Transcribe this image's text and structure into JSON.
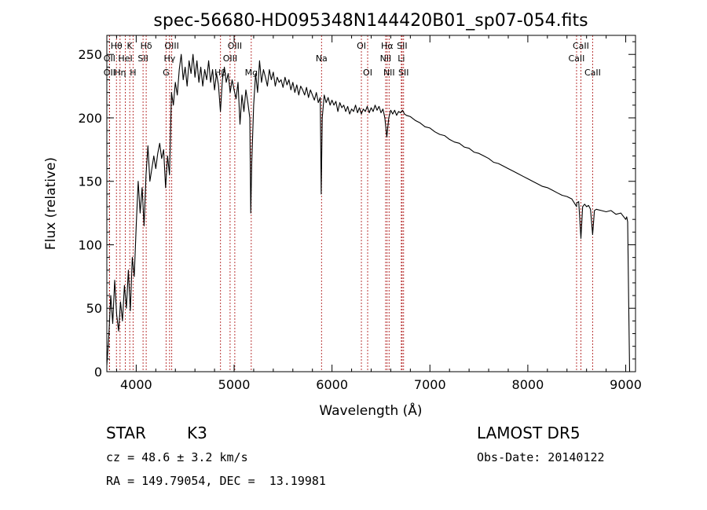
{
  "chart_data": {
    "type": "line",
    "title": "spec-56680-HD095348N144420B01_sp07-054.fits",
    "xlabel": "Wavelength (Å)",
    "ylabel": "Flux (relative)",
    "xlim": [
      3700,
      9100
    ],
    "ylim": [
      0,
      265
    ],
    "xticks": [
      4000,
      5000,
      6000,
      7000,
      8000,
      9000
    ],
    "yticks": [
      0,
      50,
      100,
      150,
      200,
      250
    ],
    "grid": false,
    "legend": "none",
    "line_color": "#000000",
    "marker_color": "#b22222",
    "series": [
      {
        "points": [
          [
            3700,
            5
          ],
          [
            3720,
            28
          ],
          [
            3740,
            60
          ],
          [
            3760,
            38
          ],
          [
            3780,
            72
          ],
          [
            3800,
            45
          ],
          [
            3820,
            32
          ],
          [
            3840,
            55
          ],
          [
            3860,
            40
          ],
          [
            3880,
            68
          ],
          [
            3900,
            50
          ],
          [
            3920,
            80
          ],
          [
            3940,
            48
          ],
          [
            3960,
            90
          ],
          [
            3980,
            75
          ],
          [
            4000,
            115
          ],
          [
            4020,
            150
          ],
          [
            4040,
            125
          ],
          [
            4060,
            145
          ],
          [
            4080,
            115
          ],
          [
            4100,
            155
          ],
          [
            4120,
            178
          ],
          [
            4140,
            150
          ],
          [
            4160,
            160
          ],
          [
            4180,
            170
          ],
          [
            4200,
            160
          ],
          [
            4220,
            172
          ],
          [
            4240,
            180
          ],
          [
            4260,
            168
          ],
          [
            4280,
            175
          ],
          [
            4300,
            145
          ],
          [
            4320,
            170
          ],
          [
            4340,
            155
          ],
          [
            4360,
            220
          ],
          [
            4380,
            210
          ],
          [
            4400,
            228
          ],
          [
            4420,
            218
          ],
          [
            4440,
            238
          ],
          [
            4460,
            250
          ],
          [
            4480,
            230
          ],
          [
            4500,
            240
          ],
          [
            4520,
            225
          ],
          [
            4540,
            245
          ],
          [
            4560,
            235
          ],
          [
            4580,
            250
          ],
          [
            4600,
            232
          ],
          [
            4620,
            245
          ],
          [
            4640,
            228
          ],
          [
            4660,
            240
          ],
          [
            4680,
            225
          ],
          [
            4700,
            238
          ],
          [
            4720,
            230
          ],
          [
            4740,
            245
          ],
          [
            4760,
            228
          ],
          [
            4780,
            238
          ],
          [
            4800,
            222
          ],
          [
            4820,
            235
          ],
          [
            4840,
            226
          ],
          [
            4860,
            205
          ],
          [
            4880,
            230
          ],
          [
            4900,
            240
          ],
          [
            4920,
            228
          ],
          [
            4940,
            235
          ],
          [
            4960,
            220
          ],
          [
            4980,
            230
          ],
          [
            5000,
            222
          ],
          [
            5020,
            215
          ],
          [
            5040,
            228
          ],
          [
            5060,
            195
          ],
          [
            5080,
            218
          ],
          [
            5100,
            205
          ],
          [
            5120,
            222
          ],
          [
            5140,
            212
          ],
          [
            5160,
            200
          ],
          [
            5170,
            125
          ],
          [
            5180,
            165
          ],
          [
            5200,
            210
          ],
          [
            5220,
            235
          ],
          [
            5240,
            220
          ],
          [
            5260,
            245
          ],
          [
            5280,
            228
          ],
          [
            5300,
            238
          ],
          [
            5320,
            232
          ],
          [
            5340,
            225
          ],
          [
            5360,
            238
          ],
          [
            5380,
            230
          ],
          [
            5400,
            236
          ],
          [
            5420,
            225
          ],
          [
            5440,
            232
          ],
          [
            5460,
            228
          ],
          [
            5480,
            230
          ],
          [
            5500,
            224
          ],
          [
            5520,
            232
          ],
          [
            5540,
            226
          ],
          [
            5560,
            230
          ],
          [
            5580,
            222
          ],
          [
            5600,
            228
          ],
          [
            5620,
            220
          ],
          [
            5640,
            226
          ],
          [
            5660,
            218
          ],
          [
            5680,
            225
          ],
          [
            5700,
            222
          ],
          [
            5720,
            218
          ],
          [
            5740,
            224
          ],
          [
            5760,
            216
          ],
          [
            5780,
            222
          ],
          [
            5800,
            218
          ],
          [
            5820,
            214
          ],
          [
            5840,
            220
          ],
          [
            5860,
            212
          ],
          [
            5880,
            216
          ],
          [
            5890,
            140
          ],
          [
            5900,
            200
          ],
          [
            5920,
            218
          ],
          [
            5940,
            212
          ],
          [
            5960,
            216
          ],
          [
            5980,
            210
          ],
          [
            6000,
            214
          ],
          [
            6020,
            210
          ],
          [
            6040,
            213
          ],
          [
            6060,
            205
          ],
          [
            6080,
            212
          ],
          [
            6100,
            208
          ],
          [
            6120,
            210
          ],
          [
            6140,
            205
          ],
          [
            6160,
            209
          ],
          [
            6180,
            203
          ],
          [
            6200,
            207
          ],
          [
            6220,
            205
          ],
          [
            6240,
            210
          ],
          [
            6260,
            204
          ],
          [
            6280,
            208
          ],
          [
            6300,
            203
          ],
          [
            6320,
            207
          ],
          [
            6340,
            205
          ],
          [
            6360,
            209
          ],
          [
            6380,
            204
          ],
          [
            6400,
            208
          ],
          [
            6420,
            205
          ],
          [
            6440,
            210
          ],
          [
            6460,
            206
          ],
          [
            6480,
            209
          ],
          [
            6500,
            204
          ],
          [
            6520,
            207
          ],
          [
            6540,
            200
          ],
          [
            6560,
            185
          ],
          [
            6580,
            200
          ],
          [
            6600,
            206
          ],
          [
            6620,
            203
          ],
          [
            6640,
            206
          ],
          [
            6660,
            202
          ],
          [
            6680,
            205
          ],
          [
            6700,
            204
          ],
          [
            6720,
            206
          ],
          [
            6740,
            203
          ],
          [
            6760,
            202
          ],
          [
            6800,
            201
          ],
          [
            6850,
            198
          ],
          [
            6900,
            196
          ],
          [
            6950,
            193
          ],
          [
            7000,
            192
          ],
          [
            7050,
            189
          ],
          [
            7100,
            187
          ],
          [
            7150,
            186
          ],
          [
            7200,
            183
          ],
          [
            7250,
            181
          ],
          [
            7300,
            180
          ],
          [
            7350,
            177
          ],
          [
            7400,
            176
          ],
          [
            7450,
            173
          ],
          [
            7500,
            172
          ],
          [
            7550,
            170
          ],
          [
            7600,
            168
          ],
          [
            7650,
            165
          ],
          [
            7700,
            164
          ],
          [
            7750,
            162
          ],
          [
            7800,
            160
          ],
          [
            7850,
            158
          ],
          [
            7900,
            156
          ],
          [
            7950,
            154
          ],
          [
            8000,
            152
          ],
          [
            8050,
            150
          ],
          [
            8100,
            148
          ],
          [
            8150,
            146
          ],
          [
            8200,
            145
          ],
          [
            8250,
            143
          ],
          [
            8300,
            141
          ],
          [
            8350,
            139
          ],
          [
            8400,
            138
          ],
          [
            8450,
            136
          ],
          [
            8498,
            130
          ],
          [
            8500,
            133
          ],
          [
            8520,
            134
          ],
          [
            8542,
            105
          ],
          [
            8560,
            130
          ],
          [
            8580,
            132
          ],
          [
            8600,
            130
          ],
          [
            8620,
            131
          ],
          [
            8640,
            128
          ],
          [
            8662,
            108
          ],
          [
            8680,
            127
          ],
          [
            8700,
            128
          ],
          [
            8750,
            127
          ],
          [
            8800,
            126
          ],
          [
            8850,
            127
          ],
          [
            8900,
            124
          ],
          [
            8950,
            125
          ],
          [
            9000,
            120
          ],
          [
            9010,
            122
          ],
          [
            9020,
            118
          ],
          [
            9030,
            55
          ],
          [
            9040,
            0
          ]
        ]
      }
    ],
    "lines": [
      {
        "label": "Hθ",
        "wl": 3798,
        "row": 1
      },
      {
        "label": "OII",
        "wl": 3727,
        "row": 2
      },
      {
        "label": "OII",
        "wl": 3727,
        "row": 3
      },
      {
        "label": "Hη",
        "wl": 3835,
        "row": 3
      },
      {
        "label": "K",
        "wl": 3934,
        "row": 1
      },
      {
        "label": "HeI",
        "wl": 3889,
        "row": 2
      },
      {
        "label": "H",
        "wl": 3968,
        "row": 3
      },
      {
        "label": "SII",
        "wl": 4070,
        "row": 2
      },
      {
        "label": "Hδ",
        "wl": 4102,
        "row": 1
      },
      {
        "label": "OIII",
        "wl": 4363,
        "row": 1
      },
      {
        "label": "Hγ",
        "wl": 4341,
        "row": 2
      },
      {
        "label": "G",
        "wl": 4305,
        "row": 3
      },
      {
        "label": "OIII",
        "wl": 5007,
        "row": 1
      },
      {
        "label": "OIII",
        "wl": 4959,
        "row": 2
      },
      {
        "label": "Hβ",
        "wl": 4861,
        "row": 3
      },
      {
        "label": "Mg",
        "wl": 5175,
        "row": 3
      },
      {
        "label": "Na",
        "wl": 5893,
        "row": 2
      },
      {
        "label": "OI",
        "wl": 6300,
        "row": 1
      },
      {
        "label": "OI",
        "wl": 6364,
        "row": 3
      },
      {
        "label": "Hα",
        "wl": 6563,
        "row": 1
      },
      {
        "label": "SII",
        "wl": 6716,
        "row": 1
      },
      {
        "label": "NII",
        "wl": 6548,
        "row": 2
      },
      {
        "label": "Li",
        "wl": 6708,
        "row": 2
      },
      {
        "label": "NII",
        "wl": 6583,
        "row": 3
      },
      {
        "label": "SII",
        "wl": 6731,
        "row": 3
      },
      {
        "label": "CaII",
        "wl": 8542,
        "row": 1
      },
      {
        "label": "CaII",
        "wl": 8498,
        "row": 2
      },
      {
        "label": "CaII",
        "wl": 8662,
        "row": 3
      }
    ]
  },
  "info": {
    "class_label": "STAR",
    "subclass": "K3",
    "survey": "LAMOST DR5",
    "cz": "cz = 48.6 ± 3.2 km/s",
    "obs_date": "Obs-Date: 20140122",
    "coords": "RA = 149.79054, DEC =  13.19981"
  }
}
